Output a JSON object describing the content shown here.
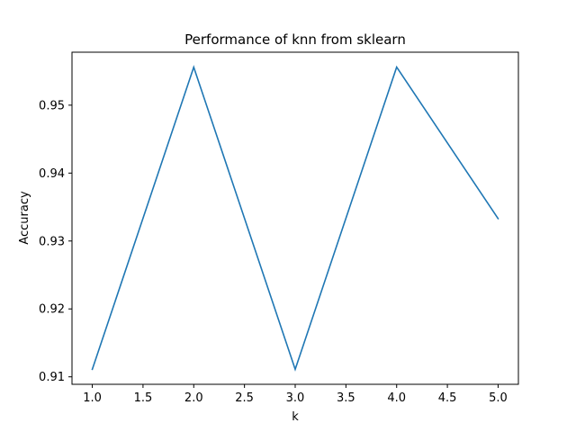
{
  "chart_data": {
    "type": "line",
    "title": "Performance of knn from sklearn",
    "xlabel": "k",
    "ylabel": "Accuracy",
    "x": [
      1.0,
      2.0,
      3.0,
      4.0,
      5.0
    ],
    "series": [
      {
        "values": [
          0.9111,
          0.9556,
          0.9111,
          0.9556,
          0.9333
        ],
        "color": "#1f77b4"
      }
    ],
    "xlim": [
      0.8,
      5.2
    ],
    "ylim": [
      0.9089,
      0.9578
    ],
    "xticks": [
      1.0,
      1.5,
      2.0,
      2.5,
      3.0,
      3.5,
      4.0,
      4.5,
      5.0
    ],
    "xtick_labels": [
      "1.0",
      "1.5",
      "2.0",
      "2.5",
      "3.0",
      "3.5",
      "4.0",
      "4.5",
      "5.0"
    ],
    "yticks": [
      0.91,
      0.92,
      0.93,
      0.94,
      0.95
    ],
    "ytick_labels": [
      "0.91",
      "0.92",
      "0.93",
      "0.94",
      "0.95"
    ],
    "grid": false,
    "legend": "none"
  }
}
